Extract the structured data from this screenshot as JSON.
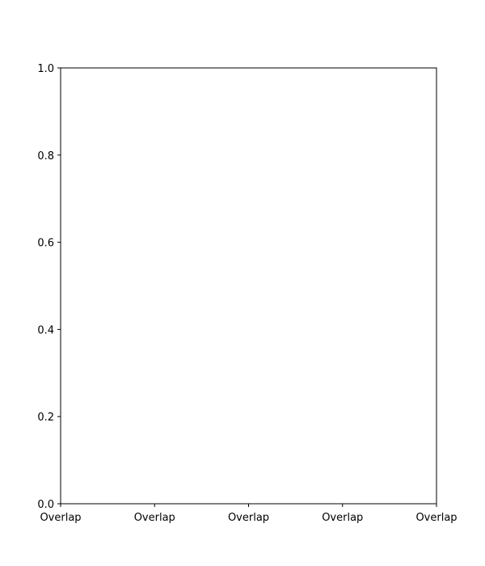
{
  "chart_data": {
    "type": "line",
    "title": "",
    "xlabel": "",
    "ylabel": "",
    "x_tick_labels": [
      "Overlap",
      "Overlap",
      "Overlap",
      "Overlap",
      "Overlap"
    ],
    "y_ticks": [
      0.0,
      0.2,
      0.4,
      0.6,
      0.8,
      1.0
    ],
    "y_tick_labels": [
      "0.0",
      "0.2",
      "0.4",
      "0.6",
      "0.8",
      "1.0"
    ],
    "ylim": [
      0.0,
      1.0
    ],
    "grid": false,
    "legend": "none",
    "series": []
  }
}
